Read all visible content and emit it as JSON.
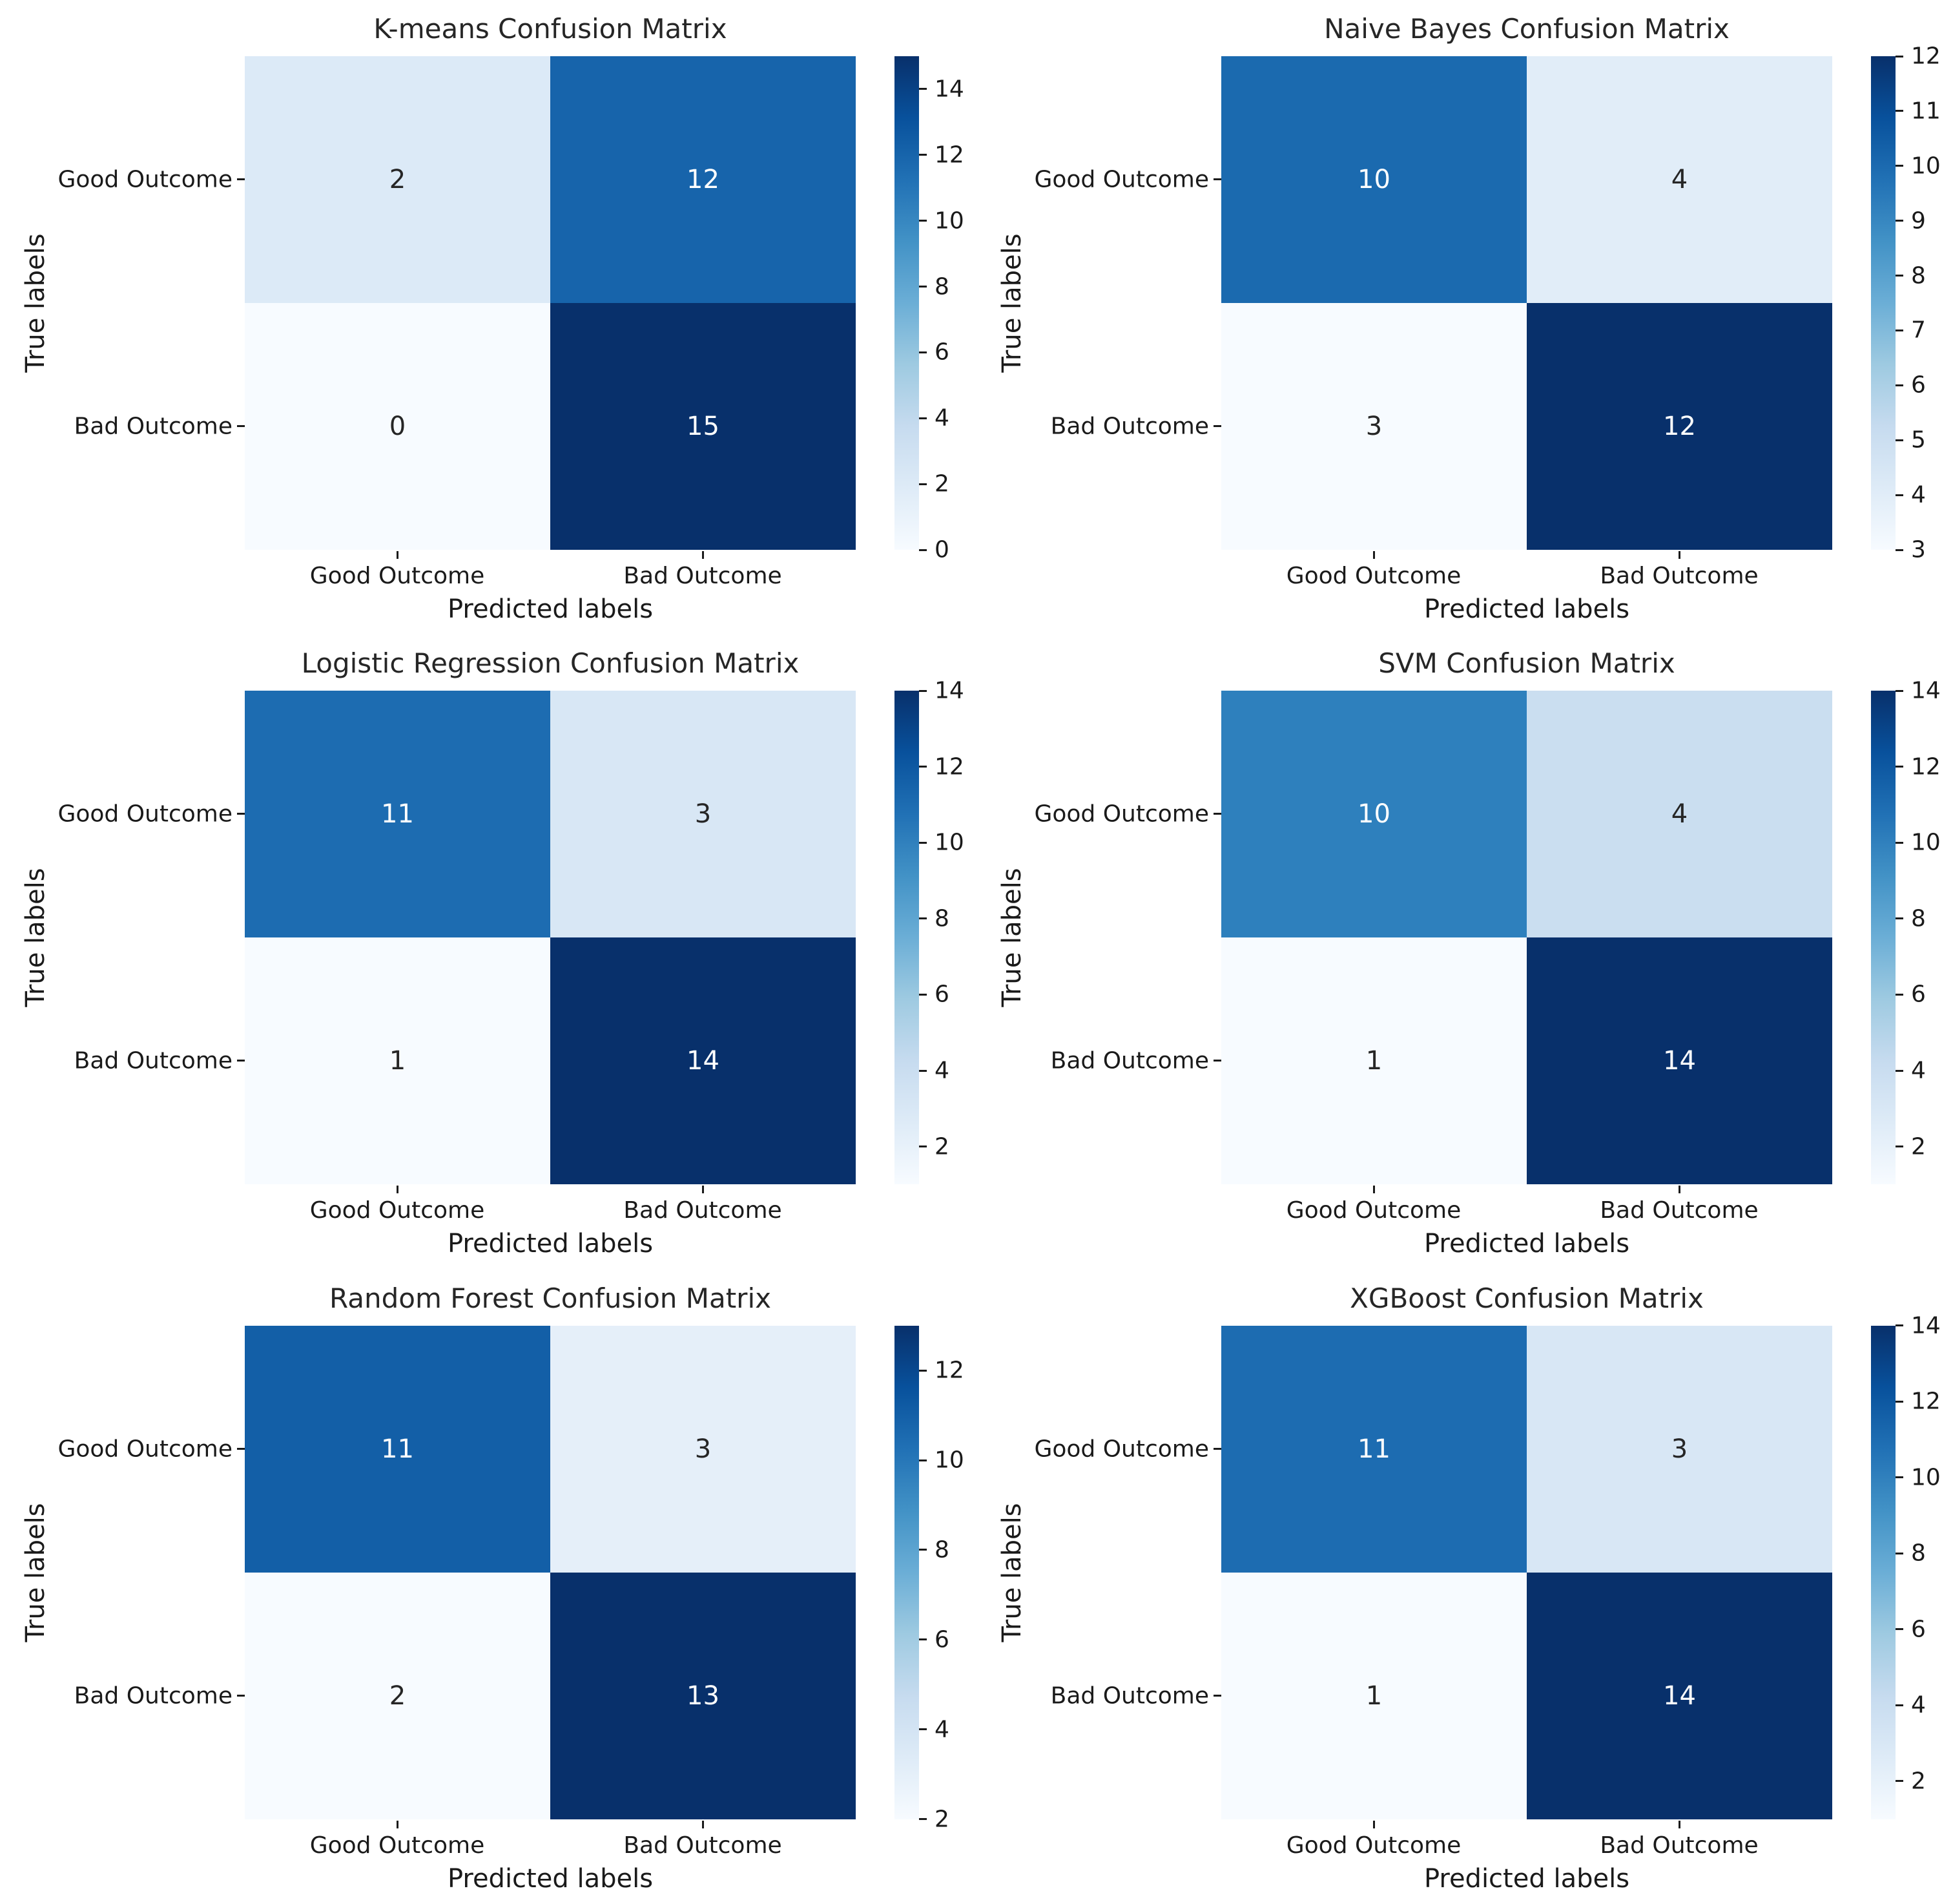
{
  "figure": {
    "background": "#ffffff",
    "colormap": "Blues",
    "colormap_stops": [
      "#f7fbff",
      "#deebf7",
      "#c6dbef",
      "#9ecae1",
      "#6baed6",
      "#4292c6",
      "#2171b5",
      "#08519c",
      "#08306b"
    ],
    "text_color": "#1a1a1a"
  },
  "chart_data": [
    {
      "id": "kmeans",
      "type": "heatmap",
      "title": "K-means Confusion Matrix",
      "xlabel": "Predicted labels",
      "ylabel": "True labels",
      "x_ticklabels": [
        "Good Outcome",
        "Bad Outcome"
      ],
      "y_ticklabels": [
        "Good Outcome",
        "Bad Outcome"
      ],
      "matrix": [
        [
          2,
          12
        ],
        [
          0,
          15
        ]
      ],
      "cell_colors": [
        [
          "#dceaf7",
          "#1764ab"
        ],
        [
          "#f7fbff",
          "#08306b"
        ]
      ],
      "cell_text_colors": [
        [
          "#262626",
          "#ffffff"
        ],
        [
          "#262626",
          "#ffffff"
        ]
      ],
      "colorbar": {
        "vmin": 0,
        "vmax": 15,
        "ticks": [
          0,
          2,
          4,
          6,
          8,
          10,
          12,
          14
        ]
      }
    },
    {
      "id": "naive-bayes",
      "type": "heatmap",
      "title": "Naive Bayes Confusion Matrix",
      "xlabel": "Predicted labels",
      "ylabel": "True labels",
      "x_ticklabels": [
        "Good Outcome",
        "Bad Outcome"
      ],
      "y_ticklabels": [
        "Good Outcome",
        "Bad Outcome"
      ],
      "matrix": [
        [
          10,
          4
        ],
        [
          3,
          12
        ]
      ],
      "cell_colors": [
        [
          "#1b6aaf",
          "#e1edf8"
        ],
        [
          "#f7fbff",
          "#08306b"
        ]
      ],
      "cell_text_colors": [
        [
          "#ffffff",
          "#262626"
        ],
        [
          "#262626",
          "#ffffff"
        ]
      ],
      "colorbar": {
        "vmin": 3,
        "vmax": 12,
        "ticks": [
          3,
          4,
          5,
          6,
          7,
          8,
          9,
          10,
          11,
          12
        ]
      }
    },
    {
      "id": "logistic-regression",
      "type": "heatmap",
      "title": "Logistic Regression Confusion Matrix",
      "xlabel": "Predicted labels",
      "ylabel": "True labels",
      "x_ticklabels": [
        "Good Outcome",
        "Bad Outcome"
      ],
      "y_ticklabels": [
        "Good Outcome",
        "Bad Outcome"
      ],
      "matrix": [
        [
          11,
          3
        ],
        [
          1,
          14
        ]
      ],
      "cell_colors": [
        [
          "#1d6cb1",
          "#d8e7f5"
        ],
        [
          "#f7fbff",
          "#08306b"
        ]
      ],
      "cell_text_colors": [
        [
          "#ffffff",
          "#262626"
        ],
        [
          "#262626",
          "#ffffff"
        ]
      ],
      "colorbar": {
        "vmin": 1,
        "vmax": 14,
        "ticks": [
          2,
          4,
          6,
          8,
          10,
          12,
          14
        ]
      }
    },
    {
      "id": "svm",
      "type": "heatmap",
      "title": "SVM Confusion Matrix",
      "xlabel": "Predicted labels",
      "ylabel": "True labels",
      "x_ticklabels": [
        "Good Outcome",
        "Bad Outcome"
      ],
      "y_ticklabels": [
        "Good Outcome",
        "Bad Outcome"
      ],
      "matrix": [
        [
          10,
          4
        ],
        [
          1,
          14
        ]
      ],
      "cell_colors": [
        [
          "#2e80bd",
          "#cadef0"
        ],
        [
          "#f7fbff",
          "#08306b"
        ]
      ],
      "cell_text_colors": [
        [
          "#ffffff",
          "#262626"
        ],
        [
          "#262626",
          "#ffffff"
        ]
      ],
      "colorbar": {
        "vmin": 1,
        "vmax": 14,
        "ticks": [
          2,
          4,
          6,
          8,
          10,
          12,
          14
        ]
      }
    },
    {
      "id": "random-forest",
      "type": "heatmap",
      "title": "Random Forest Confusion Matrix",
      "xlabel": "Predicted labels",
      "ylabel": "True labels",
      "x_ticklabels": [
        "Good Outcome",
        "Bad Outcome"
      ],
      "y_ticklabels": [
        "Good Outcome",
        "Bad Outcome"
      ],
      "matrix": [
        [
          11,
          3
        ],
        [
          2,
          13
        ]
      ],
      "cell_colors": [
        [
          "#135fa7",
          "#e5eff9"
        ],
        [
          "#f7fbff",
          "#08306b"
        ]
      ],
      "cell_text_colors": [
        [
          "#ffffff",
          "#262626"
        ],
        [
          "#262626",
          "#ffffff"
        ]
      ],
      "colorbar": {
        "vmin": 2,
        "vmax": 13,
        "ticks": [
          2,
          4,
          6,
          8,
          10,
          12
        ]
      }
    },
    {
      "id": "xgboost",
      "type": "heatmap",
      "title": "XGBoost Confusion Matrix",
      "xlabel": "Predicted labels",
      "ylabel": "True labels",
      "x_ticklabels": [
        "Good Outcome",
        "Bad Outcome"
      ],
      "y_ticklabels": [
        "Good Outcome",
        "Bad Outcome"
      ],
      "matrix": [
        [
          11,
          3
        ],
        [
          1,
          14
        ]
      ],
      "cell_colors": [
        [
          "#1d6cb1",
          "#d8e7f5"
        ],
        [
          "#f7fbff",
          "#08306b"
        ]
      ],
      "cell_text_colors": [
        [
          "#ffffff",
          "#262626"
        ],
        [
          "#262626",
          "#ffffff"
        ]
      ],
      "colorbar": {
        "vmin": 1,
        "vmax": 14,
        "ticks": [
          2,
          4,
          6,
          8,
          10,
          12,
          14
        ]
      }
    }
  ]
}
